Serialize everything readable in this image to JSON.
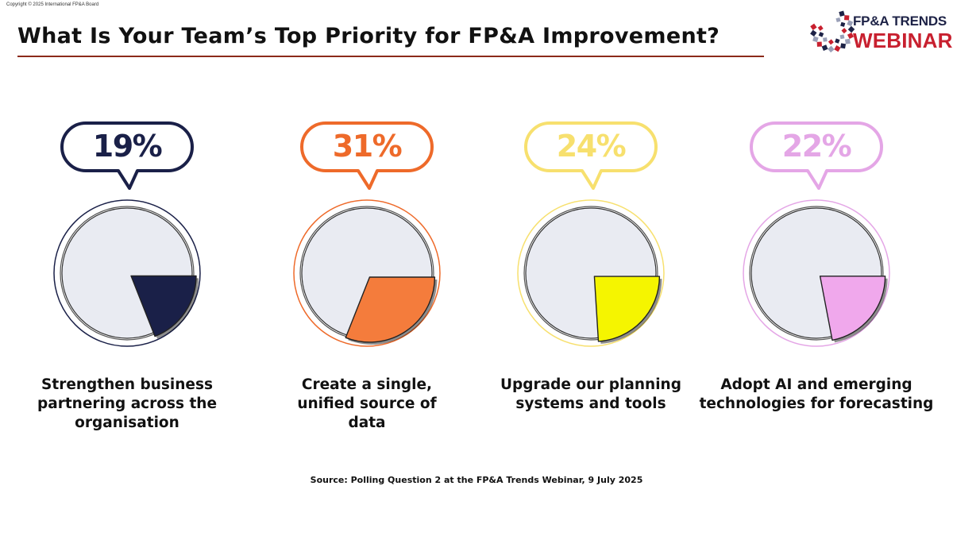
{
  "copyright": "Copyright © 2025 International FP&A Board",
  "title": "What Is Your Team’s Top Priority for FP&A Improvement?",
  "logo": {
    "line1": "FP&A TRENDS",
    "line2": "WEBINAR"
  },
  "chart_data": {
    "type": "pie",
    "categories": [
      "Strengthen business partnering across the organisation",
      "Create a single, unified source of data",
      "Upgrade our planning systems and tools",
      "Adopt AI and emerging technologies for forecasting"
    ],
    "values": [
      19,
      31,
      24,
      22
    ],
    "value_labels": [
      "19%",
      "31%",
      "24%",
      "22%"
    ],
    "unit": "%",
    "colors": [
      "#1a2048",
      "#f47c3c",
      "#f5f500",
      "#f0a8ec"
    ],
    "text_colors": [
      "#1a2048",
      "#ee6a2a",
      "#f7e06e",
      "#e4a6e6"
    ],
    "pie_background": "#e9ebf2"
  },
  "source": "Source: Polling Question 2 at the FP&A Trends Webinar, 9 July 2025"
}
